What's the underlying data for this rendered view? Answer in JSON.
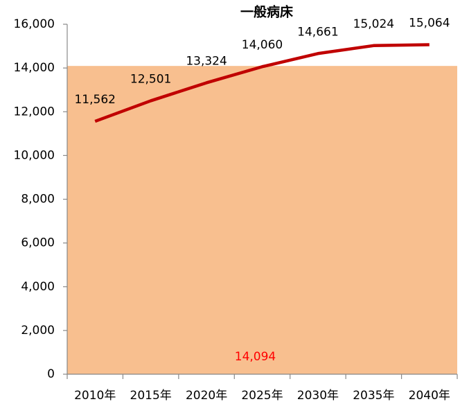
{
  "chart_data": {
    "type": "line",
    "title": "一般病床",
    "categories": [
      "2010年",
      "2015年",
      "2020年",
      "2025年",
      "2030年",
      "2035年",
      "2040年"
    ],
    "series": [
      {
        "name": "一般病床",
        "color": "#c00000",
        "values": [
          11562,
          12501,
          13324,
          14060,
          14661,
          15024,
          15064
        ],
        "value_labels": [
          "11,562",
          "12,501",
          "13,324",
          "14,060",
          "14,661",
          "15,024",
          "15,064"
        ]
      }
    ],
    "reference": {
      "value": 14094,
      "label": "14,094",
      "color": "#f8bf8f",
      "label_color": "#ff0000"
    },
    "ylim": [
      0,
      16000
    ],
    "yticks": [
      0,
      {
        "value": 2000,
        "label": "2,000"
      },
      {
        "value": 4000,
        "label": "4,000"
      },
      {
        "value": 6000,
        "label": "6,000"
      },
      {
        "value": 8000,
        "label": "8,000"
      },
      {
        "value": 10000,
        "label": "10,000"
      },
      {
        "value": 12000,
        "label": "12,000"
      },
      {
        "value": 14000,
        "label": "14,000"
      },
      {
        "value": 16000,
        "label": "16,000"
      }
    ]
  }
}
